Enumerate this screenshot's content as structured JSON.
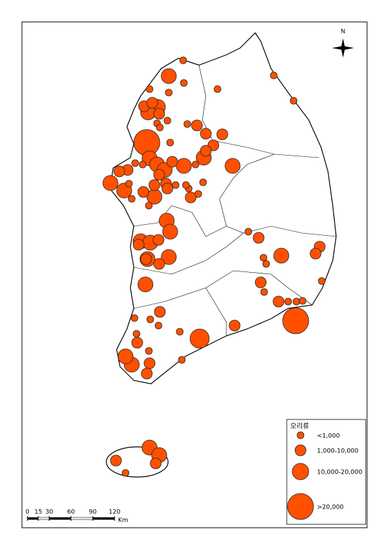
{
  "north": "N",
  "legend": {
    "title": "오리류",
    "items": [
      "<1,000",
      "1,000-10,000",
      "10,000-20,000",
      ">20,000"
    ]
  },
  "scale": {
    "ticks": [
      0,
      15,
      30,
      60,
      90,
      120
    ],
    "unit": "Km"
  }
}
